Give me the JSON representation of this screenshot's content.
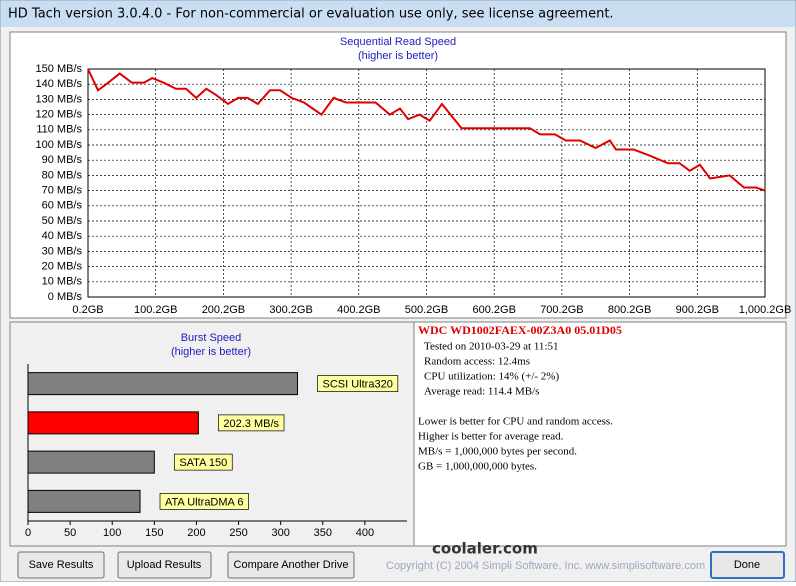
{
  "window": {
    "title": "HD Tach version 3.0.4.0  - For non-commercial or evaluation use only, see license agreement."
  },
  "chart_data": [
    {
      "type": "line",
      "title": "Sequential Read Speed",
      "subtitle": "(higher is better)",
      "color": "#e00000",
      "grid": true,
      "x": [
        0.2,
        15,
        30,
        47,
        65,
        83,
        95,
        112,
        130,
        145,
        160,
        175,
        189,
        207,
        222,
        236,
        251,
        269,
        284,
        301,
        319,
        345,
        363,
        381,
        425,
        446,
        461,
        473,
        490,
        505,
        523,
        552,
        653,
        668,
        690,
        706,
        727,
        750,
        771,
        780,
        806,
        830,
        857,
        874,
        889,
        904,
        919,
        948,
        969,
        987,
        1000.2
      ],
      "values": [
        150,
        136,
        141,
        147,
        141,
        141,
        144,
        141,
        137,
        137,
        131,
        137,
        133,
        127,
        131,
        131,
        127,
        136,
        136,
        131,
        128,
        120,
        131,
        128,
        128,
        120,
        124,
        117,
        120,
        116,
        127,
        111,
        111,
        107,
        107,
        103,
        103,
        98,
        103,
        97,
        97,
        93,
        88,
        88,
        83,
        87,
        78,
        80,
        72,
        72,
        70
      ],
      "xlim": [
        0.2,
        1000.2
      ],
      "xticks": [
        {
          "value": 0.2,
          "label": "0.2GB"
        },
        {
          "value": 100.2,
          "label": "100.2GB"
        },
        {
          "value": 200.2,
          "label": "200.2GB"
        },
        {
          "value": 300.2,
          "label": "300.2GB"
        },
        {
          "value": 400.2,
          "label": "400.2GB"
        },
        {
          "value": 500.2,
          "label": "500.2GB"
        },
        {
          "value": 600.2,
          "label": "600.2GB"
        },
        {
          "value": 700.2,
          "label": "700.2GB"
        },
        {
          "value": 800.2,
          "label": "800.2GB"
        },
        {
          "value": 900.2,
          "label": "900.2GB"
        },
        {
          "value": 1000.2,
          "label": "1,000.2GB"
        }
      ],
      "ylim": [
        0,
        150
      ],
      "yticks": [
        {
          "value": 0,
          "label": "0 MB/s"
        },
        {
          "value": 10,
          "label": "10 MB/s"
        },
        {
          "value": 20,
          "label": "20 MB/s"
        },
        {
          "value": 30,
          "label": "30 MB/s"
        },
        {
          "value": 40,
          "label": "40 MB/s"
        },
        {
          "value": 50,
          "label": "50 MB/s"
        },
        {
          "value": 60,
          "label": "60 MB/s"
        },
        {
          "value": 70,
          "label": "70 MB/s"
        },
        {
          "value": 80,
          "label": "80 MB/s"
        },
        {
          "value": 90,
          "label": "90 MB/s"
        },
        {
          "value": 100,
          "label": "100 MB/s"
        },
        {
          "value": 110,
          "label": "110 MB/s"
        },
        {
          "value": 120,
          "label": "120 MB/s"
        },
        {
          "value": 130,
          "label": "130 MB/s"
        },
        {
          "value": 140,
          "label": "140 MB/s"
        },
        {
          "value": 150,
          "label": "150 MB/s"
        }
      ]
    },
    {
      "type": "hbar",
      "title": "Burst Speed",
      "subtitle": "(higher is better)",
      "categories": [
        "SCSI Ultra320",
        null,
        "SATA 150",
        "ATA UltraDMA 6"
      ],
      "values": [
        320,
        202.3,
        150,
        133
      ],
      "value_labels": [
        null,
        "202.3 MB/s",
        null,
        null
      ],
      "colors": [
        "#808080",
        "#ff0000",
        "#808080",
        "#808080"
      ],
      "xlim": [
        0,
        450
      ],
      "xticks": [
        0,
        50,
        100,
        150,
        200,
        250,
        300,
        350,
        400
      ]
    }
  ],
  "info": {
    "drive": "WDC  WD1002FAEX-00Z3A0 05.01D05",
    "lines": [
      "Tested on 2010-03-29 at 11:51",
      "Random access: 12.4ms",
      "CPU utilization: 14% (+/- 2%)",
      "Average read: 114.4 MB/s"
    ],
    "notes": [
      "Lower is better for CPU and random access.",
      "Higher is better for average read.",
      "MB/s = 1,000,000 bytes per second.",
      "GB = 1,000,000,000 bytes."
    ]
  },
  "watermark": "coolaler.com",
  "buttons": [
    "Save Results",
    "Upload Results",
    "Compare Another Drive",
    "Done"
  ],
  "footer": "Copyright (C) 2004 Simpli Software, Inc. www.simplisoftware.com"
}
